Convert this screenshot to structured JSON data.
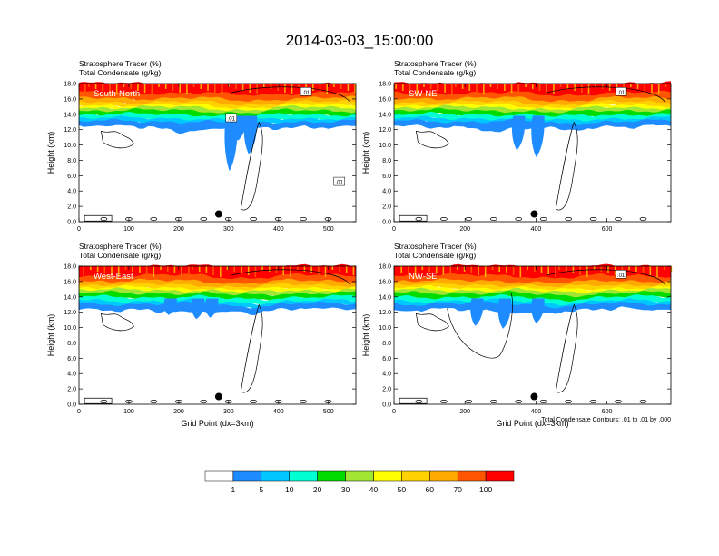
{
  "title": "2014-03-03_15:00:00",
  "footnote": "Total Condensate Contours: .01 to .01 by .000",
  "palette": {
    "white": "#ffffff",
    "b1": "#1e8cff",
    "b2": "#00c8ff",
    "b3": "#00ffd2",
    "g1": "#00f0a0",
    "g2": "#00dc00",
    "g3": "#a0e632",
    "y1": "#ffff00",
    "y2": "#ffd200",
    "o1": "#ffaa00",
    "r1": "#ff5500",
    "r2": "#ff0000"
  },
  "colorbar": {
    "colors": [
      "#ffffff",
      "#1e8cff",
      "#00c8ff",
      "#00ffd2",
      "#00dc00",
      "#a0e632",
      "#ffff00",
      "#ffd200",
      "#ffaa00",
      "#ff5500",
      "#ff0000"
    ],
    "labels": [
      "1",
      "5",
      "10",
      "20",
      "30",
      "40",
      "50",
      "60",
      "70",
      "100"
    ]
  },
  "chart_data": [
    {
      "type": "contour",
      "id": "south-north",
      "panel_label": "South-North",
      "header_line1": "Stratosphere Tracer   (%)",
      "header_line2": "Total Condensate   (g/kg)",
      "ylabel": "Height (km)",
      "xlabel": "",
      "xlim": [
        0,
        555
      ],
      "ylim": [
        0,
        18
      ],
      "xticks": [
        0,
        100,
        200,
        300,
        400,
        500
      ],
      "yticks": [
        "0.0",
        "2.0",
        "4.0",
        "6.0",
        "8.0",
        "10.0",
        "12.0",
        "14.0",
        "16.0",
        "18.0"
      ],
      "contour_labels": [
        ".01",
        ".01",
        ".01"
      ],
      "marker": {
        "x": 280,
        "y": 1.0
      }
    },
    {
      "type": "contour",
      "id": "sw-ne",
      "panel_label": "SW-NE",
      "header_line1": "Stratosphere Tracer   (%)",
      "header_line2": "Total Condensate   (g/kg)",
      "ylabel": "Height (km)",
      "xlabel": "",
      "xlim": [
        0,
        780
      ],
      "ylim": [
        0,
        18
      ],
      "xticks": [
        0,
        200,
        400,
        600
      ],
      "yticks": [
        "0.0",
        "2.0",
        "4.0",
        "6.0",
        "8.0",
        "10.0",
        "12.0",
        "14.0",
        "16.0",
        "18.0"
      ],
      "contour_labels": [
        ".01"
      ],
      "marker": {
        "x": 395,
        "y": 1.0
      }
    },
    {
      "type": "contour",
      "id": "west-east",
      "panel_label": "West-East",
      "header_line1": "Stratosphere Tracer   (%)",
      "header_line2": "Total Condensate   (g/kg)",
      "ylabel": "Height (km)",
      "xlabel": "Grid Point (dx=3km)",
      "xlim": [
        0,
        555
      ],
      "ylim": [
        0,
        18
      ],
      "xticks": [
        0,
        100,
        200,
        300,
        400,
        500
      ],
      "yticks": [
        "0.0",
        "2.0",
        "4.0",
        "6.0",
        "8.0",
        "10.0",
        "12.0",
        "14.0",
        "16.0",
        "18.0"
      ],
      "contour_labels": [],
      "marker": {
        "x": 280,
        "y": 1.0
      }
    },
    {
      "type": "contour",
      "id": "nw-se",
      "panel_label": "NW-SE",
      "header_line1": "Stratosphere Tracer   (%)",
      "header_line2": "Total Condensate   (g/kg)",
      "ylabel": "Height (km)",
      "xlabel": "Grid Point (dx=3km)",
      "xlim": [
        0,
        780
      ],
      "ylim": [
        0,
        18
      ],
      "xticks": [
        0,
        200,
        400,
        600
      ],
      "yticks": [
        "0.0",
        "2.0",
        "4.0",
        "6.0",
        "8.0",
        "10.0",
        "12.0",
        "14.0",
        "16.0",
        "18.0"
      ],
      "contour_labels": [
        ".01"
      ],
      "marker": {
        "x": 395,
        "y": 1.0
      }
    }
  ]
}
